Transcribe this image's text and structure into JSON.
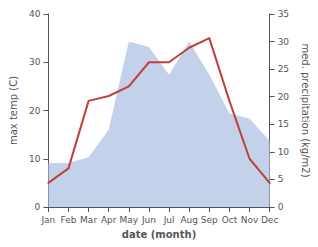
{
  "chart_data": {
    "type": "line",
    "xlabel": "date (month)",
    "ylabel": "max temp (C)",
    "y2label": "med. precipitation (kg/m2)",
    "categories": [
      "Jan",
      "Feb",
      "Mar",
      "Apr",
      "May",
      "Jun",
      "Jul",
      "Aug",
      "Sep",
      "Oct",
      "Nov",
      "Dec"
    ],
    "series": [
      {
        "type": "area",
        "axis": "y2",
        "color": "#b8c9e8",
        "values": [
          8,
          8,
          9,
          14,
          30,
          29,
          24,
          30,
          24,
          17,
          16,
          12
        ]
      },
      {
        "type": "line",
        "color": "#c0403a",
        "values": [
          5,
          8,
          22,
          23,
          25,
          30,
          30,
          33,
          35,
          22,
          10,
          5
        ]
      }
    ],
    "ylim": [
      0,
      40
    ],
    "yticks": [
      0,
      10,
      20,
      30,
      40
    ],
    "y2lim": [
      0,
      35
    ],
    "y2ticks": [
      0,
      5,
      10,
      15,
      20,
      25,
      30,
      35
    ],
    "grid": false
  }
}
